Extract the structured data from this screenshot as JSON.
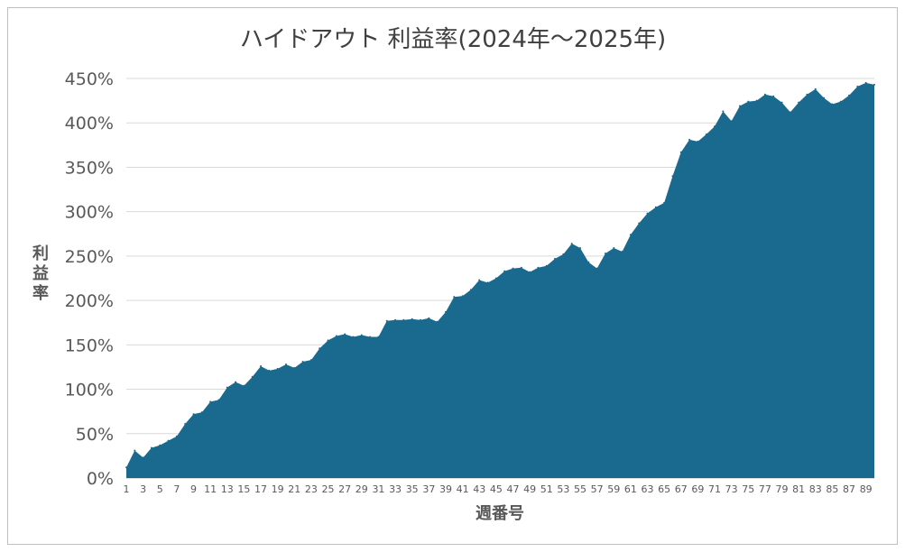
{
  "chart_data": {
    "type": "area",
    "title": "ハイドアウト 利益率(2024年～2025年)",
    "xlabel": "週番号",
    "ylabel": "利益率",
    "ylim": [
      0,
      450
    ],
    "y_ticks": [
      "0%",
      "50%",
      "100%",
      "150%",
      "200%",
      "250%",
      "300%",
      "350%",
      "400%",
      "450%"
    ],
    "x_tick_labels": [
      "1",
      "3",
      "5",
      "7",
      "9",
      "11",
      "13",
      "15",
      "17",
      "19",
      "21",
      "23",
      "25",
      "27",
      "29",
      "31",
      "33",
      "35",
      "37",
      "39",
      "41",
      "43",
      "45",
      "47",
      "49",
      "51",
      "53",
      "55",
      "57",
      "59",
      "61",
      "63",
      "65",
      "67",
      "69",
      "71",
      "73",
      "75",
      "77",
      "79",
      "81",
      "83",
      "85",
      "87",
      "89"
    ],
    "grid": true,
    "legend": "none",
    "series": [
      {
        "color": "#1a6a8f",
        "values": [
          12,
          31,
          23,
          34,
          37,
          42,
          47,
          61,
          72,
          74,
          86,
          88,
          102,
          108,
          104,
          114,
          126,
          121,
          123,
          128,
          124,
          131,
          133,
          146,
          155,
          160,
          162,
          159,
          161,
          159,
          159,
          177,
          178,
          178,
          179,
          178,
          180,
          176,
          187,
          204,
          205,
          212,
          223,
          220,
          225,
          233,
          236,
          237,
          232,
          237,
          239,
          247,
          252,
          264,
          259,
          243,
          236,
          253,
          259,
          255,
          274,
          287,
          298,
          305,
          310,
          340,
          367,
          381,
          379,
          387,
          396,
          413,
          402,
          419,
          424,
          425,
          432,
          430,
          423,
          412,
          423,
          432,
          438,
          428,
          421,
          424,
          431,
          441,
          445,
          443
        ]
      }
    ]
  }
}
